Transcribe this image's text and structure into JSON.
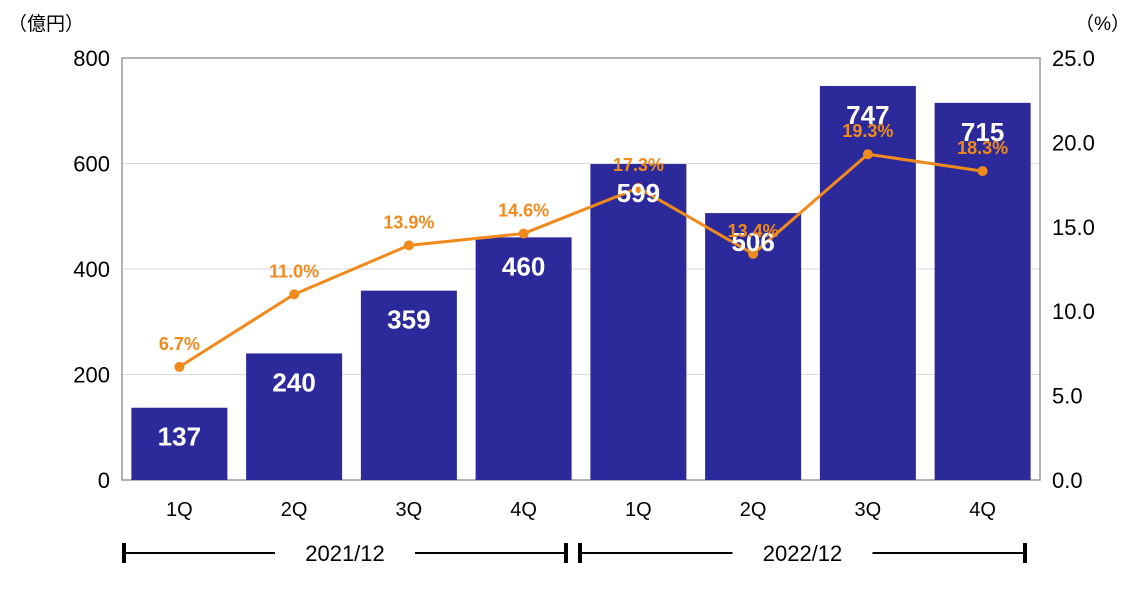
{
  "chart_data": {
    "type": "bar",
    "categories": [
      "1Q",
      "2Q",
      "3Q",
      "4Q",
      "1Q",
      "2Q",
      "3Q",
      "4Q"
    ],
    "groups": [
      {
        "label": "2021/12",
        "start": 0,
        "end": 3
      },
      {
        "label": "2022/12",
        "start": 4,
        "end": 7
      }
    ],
    "series": [
      {
        "type": "bar",
        "values": [
          137,
          240,
          359,
          460,
          599,
          506,
          747,
          715
        ],
        "axis": "left",
        "color": "#2c2a9a"
      },
      {
        "type": "line",
        "values": [
          6.7,
          11.0,
          13.9,
          14.6,
          17.3,
          13.4,
          19.3,
          18.3
        ],
        "axis": "right",
        "color": "#f08a1c"
      }
    ],
    "bar_labels": [
      "137",
      "240",
      "359",
      "460",
      "599",
      "506",
      "747",
      "715"
    ],
    "line_labels": [
      "6.7%",
      "11.0%",
      "13.9%",
      "14.6%",
      "17.3%",
      "13.4%",
      "19.3%",
      "18.3%"
    ],
    "y_left": {
      "unit": "（億円）",
      "range": [
        0,
        800
      ],
      "ticks": [
        "0",
        "200",
        "400",
        "600",
        "800"
      ]
    },
    "y_right": {
      "unit": "（%）",
      "range": [
        0,
        25
      ],
      "ticks": [
        "0.0",
        "5.0",
        "10.0",
        "15.0",
        "20.0",
        "25.0"
      ]
    },
    "grid": true,
    "legend": "none"
  }
}
